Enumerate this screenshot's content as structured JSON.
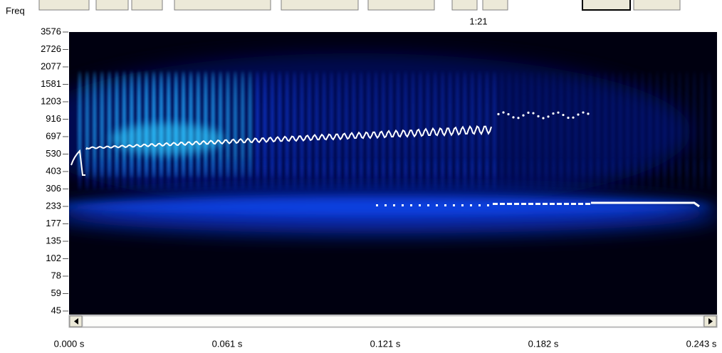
{
  "toolbar": {
    "zoom_label": "1:21"
  },
  "axis": {
    "y_label": "Freq",
    "y_ticks": [
      3576,
      2726,
      2077,
      1581,
      1203,
      916,
      697,
      530,
      403,
      306,
      233,
      177,
      135,
      102,
      78,
      59,
      45
    ],
    "x_ticks": [
      "0.000 s",
      "0.061 s",
      "0.121 s",
      "0.182 s",
      "0.243 s"
    ]
  }
}
